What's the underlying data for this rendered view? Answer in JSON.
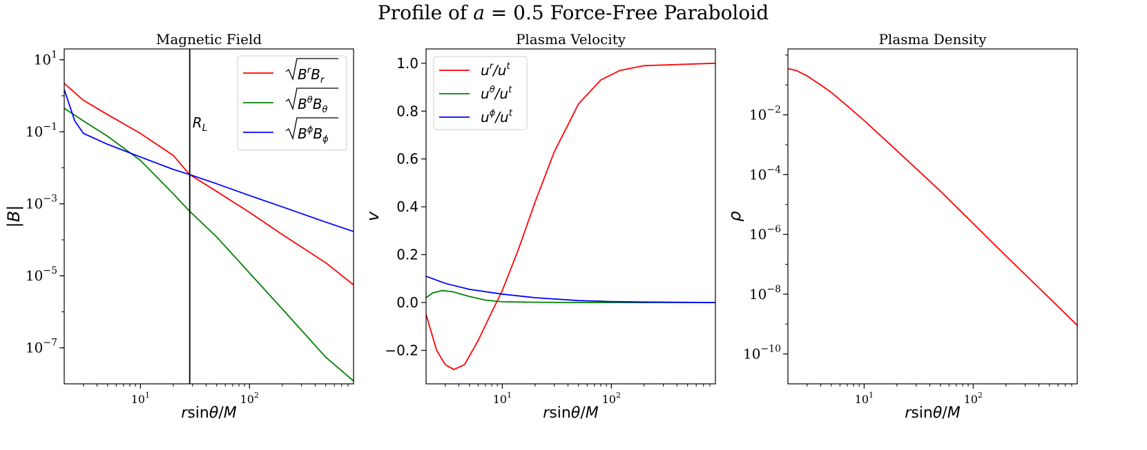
{
  "figure": {
    "title_prefix": "Profile of ",
    "title_var": "a",
    "title_eq": " = 0.5 Force-Free Paraboloid"
  },
  "chart_data": [
    {
      "type": "line",
      "title": "Magnetic Field",
      "xscale": "log",
      "yscale": "log",
      "xlim": [
        2.0,
        900
      ],
      "ylim": [
        1e-08,
        20.0
      ],
      "xlabel": "r sin θ/M",
      "ylabel": "|B|",
      "xticks": [
        {
          "value": 10,
          "base": "10",
          "exp": "1"
        },
        {
          "value": 100,
          "base": "10",
          "exp": "2"
        }
      ],
      "yticks": [
        {
          "value": 10,
          "base": "10",
          "exp": "1"
        },
        {
          "value": 0.1,
          "base": "10",
          "exp": "−1"
        },
        {
          "value": 0.001,
          "base": "10",
          "exp": "−3"
        },
        {
          "value": 1e-05,
          "base": "10",
          "exp": "−5"
        },
        {
          "value": 1e-07,
          "base": "10",
          "exp": "−7"
        }
      ],
      "vline": {
        "x": 28.3,
        "label_main": "R",
        "label_sub": "L"
      },
      "legend_position": "top-right",
      "series": [
        {
          "name": "√(B^r B_r)",
          "color": "#ff0000",
          "x": [
            2.0,
            3,
            5,
            10,
            20,
            28.3,
            50,
            100,
            200,
            500,
            900
          ],
          "y": [
            2.2,
            0.75,
            0.3,
            0.09,
            0.022,
            0.0065,
            0.0022,
            0.00058,
            0.00014,
            2.3e-05,
            5.6e-06
          ]
        },
        {
          "name": "√(B^θ B_θ)",
          "color": "#008000",
          "x": [
            2.0,
            3,
            5,
            10,
            20,
            28.3,
            50,
            100,
            200,
            500,
            900
          ],
          "y": [
            0.45,
            0.2,
            0.075,
            0.016,
            0.0019,
            0.00062,
            0.00012,
            1.2e-05,
            1.2e-06,
            5.5e-08,
            1.2e-08
          ]
        },
        {
          "name": "√(B^φ B_φ)",
          "color": "#0000ff",
          "x": [
            2.0,
            2.5,
            3,
            5,
            10,
            20,
            28.3,
            50,
            100,
            200,
            500,
            900
          ],
          "y": [
            1.5,
            0.2,
            0.09,
            0.045,
            0.02,
            0.009,
            0.0065,
            0.0036,
            0.0017,
            0.00082,
            0.00031,
            0.00017
          ]
        }
      ],
      "legend_labels": [
        {
          "base": "B",
          "sup1": "r",
          "mid": "B",
          "sub2": "r"
        },
        {
          "base": "B",
          "sup1": "θ",
          "mid": "B",
          "sub2": "θ"
        },
        {
          "base": "B",
          "sup1": "ϕ",
          "mid": "B",
          "sub2": "ϕ"
        }
      ]
    },
    {
      "type": "line",
      "title": "Plasma Velocity",
      "xscale": "log",
      "yscale": "linear",
      "xlim": [
        2.0,
        900
      ],
      "ylim": [
        -0.34,
        1.06
      ],
      "xlabel": "r sin θ/M",
      "ylabel": "v",
      "xticks": [
        {
          "value": 10,
          "base": "10",
          "exp": "1"
        },
        {
          "value": 100,
          "base": "10",
          "exp": "2"
        }
      ],
      "yticks": [
        {
          "value": -0.2,
          "text": "−0.2"
        },
        {
          "value": 0.0,
          "text": "0.0"
        },
        {
          "value": 0.2,
          "text": "0.2"
        },
        {
          "value": 0.4,
          "text": "0.4"
        },
        {
          "value": 0.6,
          "text": "0.6"
        },
        {
          "value": 0.8,
          "text": "0.8"
        },
        {
          "value": 1.0,
          "text": "1.0"
        }
      ],
      "legend_position": "top-left",
      "series": [
        {
          "name": "u^r/u^t",
          "color": "#ff0000",
          "x": [
            2.0,
            2.5,
            3,
            3.6,
            4.5,
            6,
            8,
            10,
            14,
            20,
            30,
            50,
            80,
            120,
            200,
            400,
            900
          ],
          "y": [
            -0.05,
            -0.2,
            -0.26,
            -0.28,
            -0.26,
            -0.16,
            -0.04,
            0.05,
            0.22,
            0.42,
            0.63,
            0.83,
            0.93,
            0.97,
            0.99,
            0.995,
            1.0
          ]
        },
        {
          "name": "u^θ/u^t",
          "color": "#008000",
          "x": [
            2.0,
            2.3,
            2.8,
            3.5,
            5,
            7,
            10,
            20,
            50,
            100,
            900
          ],
          "y": [
            0.02,
            0.04,
            0.05,
            0.045,
            0.025,
            0.01,
            0.003,
            0.001,
            0.0,
            0.0,
            0.0
          ]
        },
        {
          "name": "u^ϕ/u^t",
          "color": "#0000ff",
          "x": [
            2.0,
            3,
            5,
            10,
            20,
            50,
            100,
            200,
            900
          ],
          "y": [
            0.11,
            0.08,
            0.055,
            0.035,
            0.02,
            0.008,
            0.004,
            0.002,
            0.0
          ]
        }
      ],
      "legend_labels": [
        {
          "top": "r",
          "bottom": "t"
        },
        {
          "top": "θ",
          "bottom": "t"
        },
        {
          "top": "ϕ",
          "bottom": "t"
        }
      ]
    },
    {
      "type": "line",
      "title": "Plasma Density",
      "xscale": "log",
      "yscale": "log",
      "xlim": [
        2.0,
        900
      ],
      "ylim": [
        1e-11,
        1.6
      ],
      "xlabel": "r sin θ/M",
      "ylabel": "ρ",
      "xticks": [
        {
          "value": 10,
          "base": "10",
          "exp": "1"
        },
        {
          "value": 100,
          "base": "10",
          "exp": "2"
        }
      ],
      "yticks": [
        {
          "value": 0.01,
          "base": "10",
          "exp": "−2"
        },
        {
          "value": 0.0001,
          "base": "10",
          "exp": "−4"
        },
        {
          "value": 1e-06,
          "base": "10",
          "exp": "−6"
        },
        {
          "value": 1e-08,
          "base": "10",
          "exp": "−8"
        },
        {
          "value": 1e-10,
          "base": "10",
          "exp": "−10"
        }
      ],
      "series": [
        {
          "name": "rho",
          "color": "#ff0000",
          "x": [
            2.0,
            2.4,
            3,
            4,
            5,
            7,
            10,
            20,
            50,
            100,
            200,
            500,
            900
          ],
          "y": [
            0.35,
            0.3,
            0.2,
            0.1,
            0.056,
            0.02,
            0.0064,
            0.00063,
            2.8e-05,
            2.3e-06,
            1.9e-07,
            7.4e-09,
            9e-10
          ]
        }
      ]
    }
  ]
}
